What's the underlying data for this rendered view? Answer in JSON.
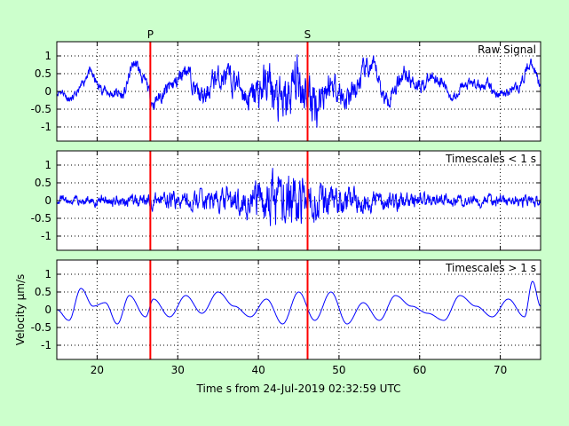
{
  "chart_data": {
    "type": "line",
    "figure_background": "#ccffcc",
    "trace_color": "#0000ff",
    "pick_color": "#ff0000",
    "grid": "dotted",
    "xlabel": "Time s from 24-Jul-2019 02:32:59 UTC",
    "ylabel": "Velocity µm/s",
    "xlim": [
      15,
      75
    ],
    "ylim": [
      -1.4,
      1.4
    ],
    "x_ticks": [
      20,
      30,
      40,
      50,
      60,
      70
    ],
    "y_ticks": [
      -1,
      -0.5,
      0,
      0.5,
      1
    ],
    "y_tick_labels": [
      "-1",
      "-0.5",
      "0",
      "0.5",
      "1"
    ],
    "picks": [
      {
        "label": "P",
        "x": 26.6
      },
      {
        "label": "S",
        "x": 46.1
      }
    ],
    "panels": [
      {
        "title": "Raw Signal",
        "trend": [
          [
            15,
            0
          ],
          [
            17,
            -0.2
          ],
          [
            19,
            0.5
          ],
          [
            21,
            0
          ],
          [
            23,
            -0.1
          ],
          [
            24.8,
            0.8
          ],
          [
            26,
            0.2
          ],
          [
            27,
            -0.3
          ],
          [
            29,
            0.1
          ],
          [
            31,
            0.6
          ],
          [
            33,
            -0.2
          ],
          [
            35,
            0.4
          ],
          [
            37,
            0.3
          ],
          [
            39,
            -0.2
          ],
          [
            41,
            0.2
          ],
          [
            43,
            -0.4
          ],
          [
            45,
            0.3
          ],
          [
            47,
            -0.3
          ],
          [
            49,
            0.2
          ],
          [
            51,
            -0.2
          ],
          [
            54,
            0.7
          ],
          [
            56,
            -0.2
          ],
          [
            58,
            0.5
          ],
          [
            60,
            0.2
          ],
          [
            62,
            0.4
          ],
          [
            64,
            -0.1
          ],
          [
            66,
            0.2
          ],
          [
            68,
            0.2
          ],
          [
            70,
            -0.1
          ],
          [
            72,
            0.1
          ],
          [
            74,
            0.8
          ],
          [
            75,
            0.1
          ]
        ],
        "noise": [
          [
            15,
            0.08
          ],
          [
            23,
            0.12
          ],
          [
            30,
            0.18
          ],
          [
            38,
            0.3
          ],
          [
            43,
            0.55
          ],
          [
            46,
            0.55
          ],
          [
            50,
            0.3
          ],
          [
            56,
            0.2
          ],
          [
            65,
            0.12
          ],
          [
            75,
            0.12
          ]
        ]
      },
      {
        "title": "Timescales < 1 s",
        "trend": [
          [
            15,
            0
          ],
          [
            75,
            0
          ]
        ],
        "noise": [
          [
            15,
            0.08
          ],
          [
            23,
            0.12
          ],
          [
            30,
            0.18
          ],
          [
            38,
            0.3
          ],
          [
            43,
            0.6
          ],
          [
            46,
            0.5
          ],
          [
            50,
            0.3
          ],
          [
            56,
            0.2
          ],
          [
            65,
            0.12
          ],
          [
            75,
            0.12
          ]
        ]
      },
      {
        "title": "Timescales > 1 s",
        "trend": [
          [
            15,
            0
          ],
          [
            16.5,
            -0.3
          ],
          [
            18,
            0.6
          ],
          [
            19.5,
            0.1
          ],
          [
            21,
            0.2
          ],
          [
            22.5,
            -0.4
          ],
          [
            24,
            0.4
          ],
          [
            26,
            -0.2
          ],
          [
            27,
            0.3
          ],
          [
            29,
            -0.2
          ],
          [
            31,
            0.4
          ],
          [
            33,
            -0.1
          ],
          [
            35,
            0.5
          ],
          [
            37,
            0.1
          ],
          [
            39,
            -0.2
          ],
          [
            41,
            0.3
          ],
          [
            43,
            -0.4
          ],
          [
            45,
            0.5
          ],
          [
            47,
            -0.3
          ],
          [
            49,
            0.5
          ],
          [
            51,
            -0.4
          ],
          [
            53,
            0.2
          ],
          [
            55,
            -0.3
          ],
          [
            57,
            0.4
          ],
          [
            59,
            0.1
          ],
          [
            61,
            -0.1
          ],
          [
            63,
            -0.3
          ],
          [
            65,
            0.4
          ],
          [
            67,
            0.1
          ],
          [
            69,
            -0.2
          ],
          [
            71,
            0.3
          ],
          [
            73,
            -0.2
          ],
          [
            74,
            0.8
          ],
          [
            75,
            0.1
          ]
        ],
        "noise": [
          [
            15,
            0
          ],
          [
            75,
            0
          ]
        ]
      }
    ]
  }
}
